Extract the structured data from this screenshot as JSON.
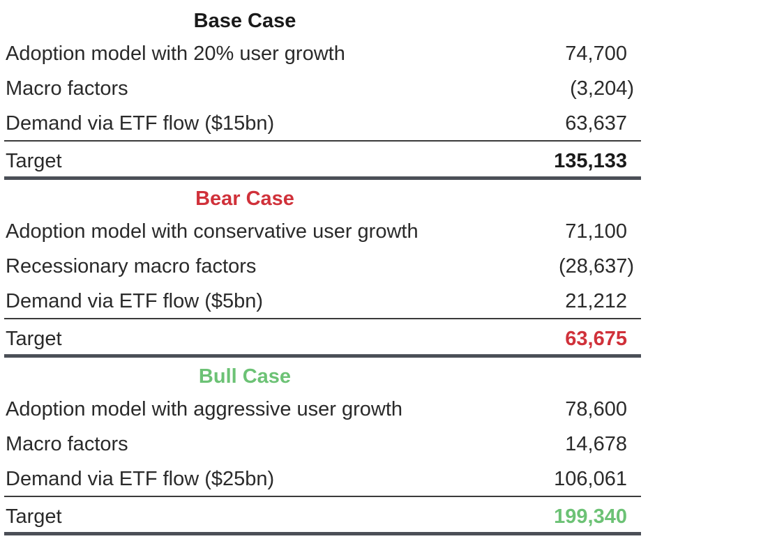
{
  "scenarios": [
    {
      "heading": "Base Case",
      "heading_color": "#1a1a1a",
      "rows": [
        {
          "label": "Adoption model with 20% user growth",
          "value": "74,700"
        },
        {
          "label": "Macro factors",
          "value": "(3,204)"
        },
        {
          "label": "Demand via ETF flow ($15bn)",
          "value": "63,637"
        }
      ],
      "target_label": "Target",
      "target_value": "135,133",
      "target_color": "#1a1a1a"
    },
    {
      "heading": "Bear Case",
      "heading_color": "#d0313a",
      "rows": [
        {
          "label": "Adoption model with conservative user growth",
          "value": "71,100"
        },
        {
          "label": "Recessionary macro factors",
          "value": "(28,637)"
        },
        {
          "label": "Demand via ETF flow ($5bn)",
          "value": "21,212"
        }
      ],
      "target_label": "Target",
      "target_value": "63,675",
      "target_color": "#d0313a"
    },
    {
      "heading": "Bull Case",
      "heading_color": "#6cc275",
      "rows": [
        {
          "label": "Adoption model with aggressive user growth",
          "value": "78,600"
        },
        {
          "label": "Macro factors",
          "value": "14,678"
        },
        {
          "label": "Demand via ETF flow ($25bn)",
          "value": "106,061"
        }
      ],
      "target_label": "Target",
      "target_value": "199,340",
      "target_color": "#6cc275"
    }
  ]
}
